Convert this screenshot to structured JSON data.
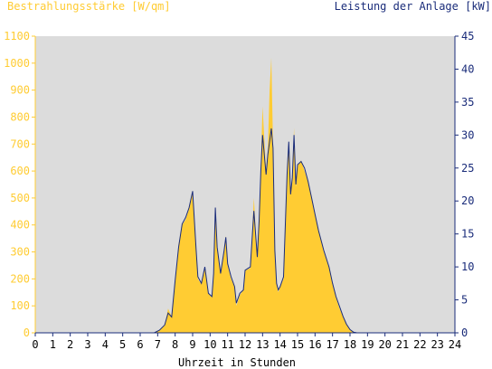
{
  "chart_data": {
    "type": "area",
    "left_axis_label": "Bestrahlungsstärke [W/qm]",
    "right_axis_label": "Leistung der Anlage [kW]",
    "xlabel": "Uhrzeit in Stunden",
    "x_ticks": [
      "0",
      "1",
      "2",
      "3",
      "4",
      "5",
      "6",
      "7",
      "8",
      "9",
      "10",
      "11",
      "12",
      "13",
      "14",
      "15",
      "16",
      "17",
      "18",
      "19",
      "20",
      "21",
      "22",
      "23",
      "24"
    ],
    "y_left_ticks": [
      "0",
      "100",
      "200",
      "300",
      "400",
      "500",
      "600",
      "700",
      "800",
      "900",
      "1000",
      "1100"
    ],
    "y_right_ticks": [
      "0",
      "5",
      "10",
      "15",
      "20",
      "25",
      "30",
      "35",
      "40",
      "45"
    ],
    "xlim": [
      0,
      24
    ],
    "ylim_left": [
      0,
      1100
    ],
    "ylim_right": [
      0,
      45
    ],
    "grid": false,
    "colors": {
      "left_axis": "#FFCC33",
      "right_axis": "#1A2C7A",
      "irradiance_fill": "#FFCC33",
      "plot_background": "#DCDCDC"
    },
    "series": [
      {
        "axis": "left",
        "x": [
          0,
          6.8,
          7.1,
          7.4,
          7.6,
          7.8,
          8.0,
          8.2,
          8.4,
          8.6,
          8.8,
          9.0,
          9.2,
          9.3,
          9.5,
          9.7,
          9.9,
          10.1,
          10.2,
          10.3,
          10.4,
          10.6,
          10.8,
          10.9,
          11.0,
          11.2,
          11.4,
          11.5,
          11.7,
          11.9,
          12.0,
          12.3,
          12.5,
          12.7,
          12.8,
          12.9,
          13.0,
          13.2,
          13.3,
          13.4,
          13.5,
          13.6,
          13.7,
          13.8,
          13.9,
          14.0,
          14.2,
          14.4,
          14.5,
          14.6,
          14.7,
          14.8,
          14.9,
          15.0,
          15.2,
          15.4,
          15.6,
          15.8,
          16.0,
          16.2,
          16.5,
          16.8,
          17.0,
          17.2,
          17.4,
          17.6,
          17.8,
          18.0,
          18.2,
          18.4,
          18.6,
          24
        ],
        "y": [
          0,
          0,
          10,
          30,
          90,
          60,
          200,
          330,
          400,
          420,
          460,
          520,
          300,
          200,
          180,
          240,
          150,
          130,
          220,
          440,
          310,
          220,
          300,
          360,
          250,
          200,
          170,
          100,
          140,
          160,
          230,
          240,
          500,
          280,
          420,
          620,
          840,
          600,
          680,
          900,
          1020,
          700,
          300,
          180,
          150,
          170,
          200,
          580,
          700,
          520,
          560,
          760,
          540,
          620,
          640,
          600,
          560,
          500,
          440,
          380,
          300,
          240,
          180,
          130,
          90,
          60,
          30,
          10,
          3,
          0,
          0,
          0
        ]
      },
      {
        "axis": "right",
        "x": [
          0,
          6.8,
          7.1,
          7.4,
          7.6,
          7.8,
          8.0,
          8.2,
          8.4,
          8.6,
          8.8,
          9.0,
          9.2,
          9.3,
          9.5,
          9.7,
          9.9,
          10.1,
          10.2,
          10.3,
          10.4,
          10.6,
          10.8,
          10.9,
          11.0,
          11.2,
          11.4,
          11.5,
          11.7,
          11.9,
          12.0,
          12.3,
          12.5,
          12.7,
          12.8,
          12.9,
          13.0,
          13.2,
          13.3,
          13.4,
          13.5,
          13.6,
          13.7,
          13.8,
          13.9,
          14.0,
          14.2,
          14.4,
          14.5,
          14.6,
          14.7,
          14.8,
          14.9,
          15.0,
          15.2,
          15.4,
          15.6,
          15.8,
          16.0,
          16.2,
          16.5,
          16.8,
          17.0,
          17.2,
          17.4,
          17.6,
          17.8,
          18.0,
          18.2,
          18.4,
          18.6,
          24
        ],
        "y": [
          0,
          0,
          0.4,
          1.2,
          3.0,
          2.4,
          8.0,
          13.0,
          16.5,
          17.5,
          19.0,
          21.5,
          12.5,
          8.5,
          7.5,
          10.0,
          6.0,
          5.5,
          9.0,
          19.0,
          13.0,
          9.0,
          12.5,
          14.5,
          10.5,
          8.5,
          7.0,
          4.5,
          6.0,
          6.5,
          9.5,
          10.0,
          18.5,
          11.5,
          17.0,
          24.5,
          30.0,
          24.0,
          27.0,
          29.0,
          31.0,
          28.0,
          12.5,
          7.5,
          6.5,
          7.0,
          8.5,
          24.0,
          29.0,
          21.0,
          23.5,
          30.0,
          22.5,
          25.5,
          26.0,
          25.0,
          23.0,
          20.5,
          18.0,
          15.5,
          12.5,
          10.0,
          7.5,
          5.5,
          4.0,
          2.5,
          1.3,
          0.5,
          0.1,
          0,
          0,
          0
        ]
      }
    ]
  }
}
